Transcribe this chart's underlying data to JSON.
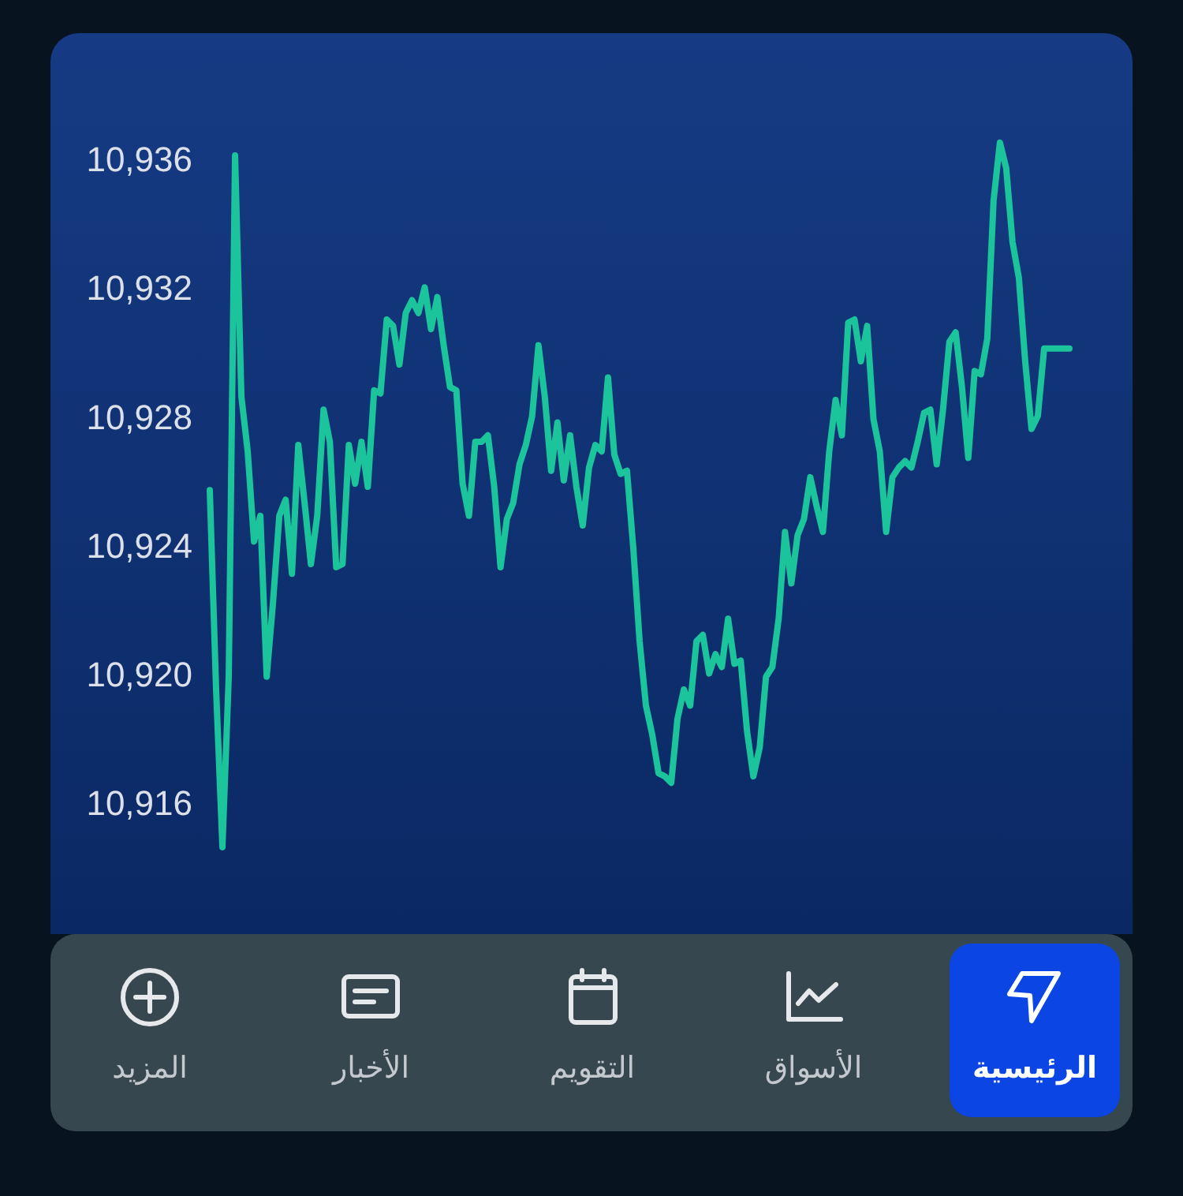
{
  "chart_data": {
    "type": "line",
    "categories": [
      null,
      null,
      null,
      null,
      null,
      null,
      null,
      null,
      null,
      null,
      null,
      null,
      null,
      null,
      null,
      null,
      null,
      null,
      null,
      null,
      null,
      null,
      null,
      null,
      null,
      null,
      null,
      null,
      null,
      null,
      null,
      null,
      null,
      null,
      null,
      null,
      null,
      null,
      null,
      null,
      null,
      null,
      null,
      null,
      null,
      null,
      null,
      null,
      null,
      null,
      null,
      null,
      null,
      null,
      null,
      null,
      null,
      null,
      null,
      null,
      null,
      null,
      null,
      null,
      null,
      null,
      null,
      null,
      null,
      null,
      null,
      null,
      null,
      null,
      null,
      null,
      null,
      null,
      null,
      null,
      null,
      null,
      null,
      null,
      null,
      null,
      null,
      null,
      null,
      null,
      null,
      null,
      null,
      null,
      null,
      null,
      null,
      null,
      null,
      null,
      null,
      null,
      null,
      null,
      null,
      null,
      null,
      null,
      null,
      null,
      null,
      null,
      null,
      null,
      null,
      null,
      null,
      null,
      null,
      null,
      null,
      null,
      null,
      null,
      null,
      null,
      null,
      null,
      null,
      null,
      null,
      null,
      null,
      null,
      null,
      null,
      null
    ],
    "values": [
      10925.8,
      10919.6,
      10914.7,
      10920.0,
      10936.2,
      10928.7,
      10927.0,
      10924.2,
      10925.0,
      10920.0,
      10922.3,
      10925.0,
      10925.5,
      10923.2,
      10927.2,
      10925.4,
      10923.5,
      10925.0,
      10928.3,
      10927.3,
      10923.4,
      10923.5,
      10927.2,
      10926.0,
      10927.3,
      10925.9,
      10928.9,
      10928.8,
      10931.1,
      10930.9,
      10929.7,
      10931.3,
      10931.7,
      10931.3,
      10932.1,
      10930.8,
      10931.8,
      10930.3,
      10929.0,
      10928.9,
      10926.0,
      10925.0,
      10927.3,
      10927.3,
      10927.5,
      10925.9,
      10923.4,
      10924.9,
      10925.4,
      10926.6,
      10927.2,
      10928.1,
      10930.3,
      10928.7,
      10926.4,
      10927.9,
      10926.1,
      10927.5,
      10925.9,
      10924.7,
      10926.5,
      10927.2,
      10927.0,
      10929.3,
      10926.9,
      10926.3,
      10926.4,
      10924.0,
      10921.1,
      10919.1,
      10918.2,
      10917.0,
      10916.9,
      10916.7,
      10918.7,
      10919.6,
      10919.1,
      10921.1,
      10921.3,
      10920.1,
      10920.7,
      10920.3,
      10921.8,
      10920.4,
      10920.5,
      10918.3,
      10916.9,
      10917.8,
      10920.0,
      10920.3,
      10921.8,
      10924.5,
      10922.9,
      10924.4,
      10924.9,
      10926.2,
      10925.3,
      10924.5,
      10927.0,
      10928.6,
      10927.5,
      10931.0,
      10931.1,
      10929.8,
      10930.9,
      10928.0,
      10927.0,
      10924.5,
      10926.2,
      10926.5,
      10926.7,
      10926.5,
      10927.3,
      10928.2,
      10928.3,
      10926.6,
      10928.3,
      10930.4,
      10930.7,
      10929.0,
      10926.8,
      10929.5,
      10929.4,
      10930.5,
      10934.8,
      10936.6,
      10935.8,
      10933.5,
      10932.4,
      10929.8,
      10927.7,
      10928.1,
      10930.2,
      10930.2,
      10930.2,
      10930.2,
      10930.2
    ],
    "color": "#1cc49c",
    "ylim": [
      10912,
      10940
    ],
    "yticks": [
      {
        "value": 10916,
        "label": "10,916"
      },
      {
        "value": 10920,
        "label": "10,920"
      },
      {
        "value": 10924,
        "label": "10,924"
      },
      {
        "value": 10928,
        "label": "10,928"
      },
      {
        "value": 10932,
        "label": "10,932"
      },
      {
        "value": 10936,
        "label": "10,936"
      }
    ],
    "tick_labels": "y",
    "annotations": [
      "الرئيسية",
      "الأسواق",
      "التقويم",
      "الأخبار",
      "المزيد"
    ]
  }
}
